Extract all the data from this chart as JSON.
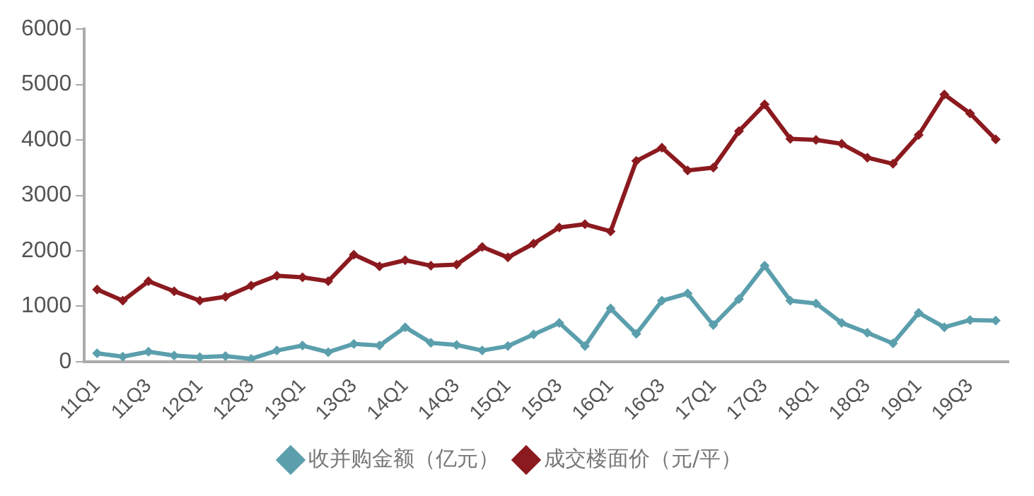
{
  "chart_data": {
    "type": "line",
    "categories": [
      "11Q1",
      null,
      "11Q3",
      null,
      "12Q1",
      null,
      "12Q3",
      null,
      "13Q1",
      null,
      "13Q3",
      null,
      "14Q1",
      null,
      "14Q3",
      null,
      "15Q1",
      null,
      "15Q3",
      null,
      "16Q1",
      null,
      "16Q3",
      null,
      "17Q1",
      null,
      "17Q3",
      null,
      "18Q1",
      null,
      "18Q3",
      null,
      "19Q1",
      null,
      "19Q3",
      null
    ],
    "series": [
      {
        "name": "收并购金额（亿元）",
        "color": "#5b9fad",
        "values": [
          150,
          90,
          180,
          110,
          80,
          100,
          50,
          200,
          290,
          170,
          320,
          290,
          620,
          340,
          300,
          200,
          280,
          490,
          700,
          280,
          960,
          500,
          1100,
          1230,
          660,
          1130,
          1730,
          1100,
          1050,
          700,
          520,
          330,
          880,
          620,
          750,
          740
        ]
      },
      {
        "name": "成交楼面价（元/平）",
        "color": "#8b1a1f",
        "values": [
          1300,
          1100,
          1450,
          1270,
          1100,
          1170,
          1370,
          1550,
          1520,
          1450,
          1930,
          1720,
          1830,
          1730,
          1750,
          2070,
          1880,
          2130,
          2420,
          2480,
          2350,
          3620,
          3860,
          3450,
          3500,
          4160,
          4640,
          4020,
          4000,
          3930,
          3680,
          3570,
          4090,
          4820,
          4480,
          4010
        ]
      }
    ],
    "ylim": [
      0,
      6000
    ],
    "yticks": [
      0,
      1000,
      2000,
      3000,
      4000,
      5000,
      6000
    ],
    "grid": false,
    "legend": "bottom",
    "marker": "diamond",
    "line_style": "solid"
  }
}
